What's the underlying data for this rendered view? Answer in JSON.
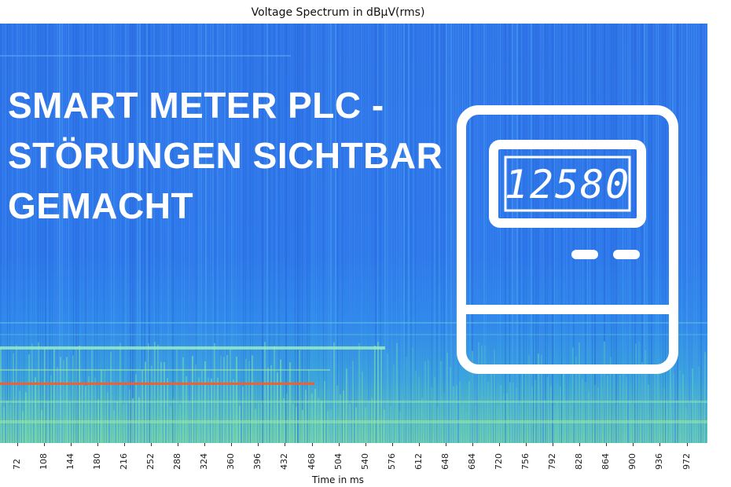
{
  "chart_data": {
    "type": "heatmap",
    "title": "Voltage Spectrum in dBµV(rms)",
    "xlabel": "Time in ms",
    "ylabel": "",
    "x_ticks": [
      72,
      108,
      144,
      180,
      216,
      252,
      288,
      324,
      360,
      396,
      432,
      468,
      504,
      540,
      576,
      612,
      648,
      684,
      720,
      756,
      792,
      828,
      864,
      900,
      936,
      972
    ],
    "xlim": [
      49,
      1000
    ],
    "colormap": "jet",
    "colors": {
      "low": "#2f74e8",
      "mid": "#3aa6d8",
      "high": "#6fd0a8",
      "peak": "#ff5a1f"
    }
  },
  "overlay": {
    "headline_lines": [
      "SMART METER PLC -",
      "STÖRUNGEN SICHTBAR",
      "GEMACHT"
    ],
    "meter_display": "12580",
    "meter_icon": "smart-meter-icon"
  }
}
